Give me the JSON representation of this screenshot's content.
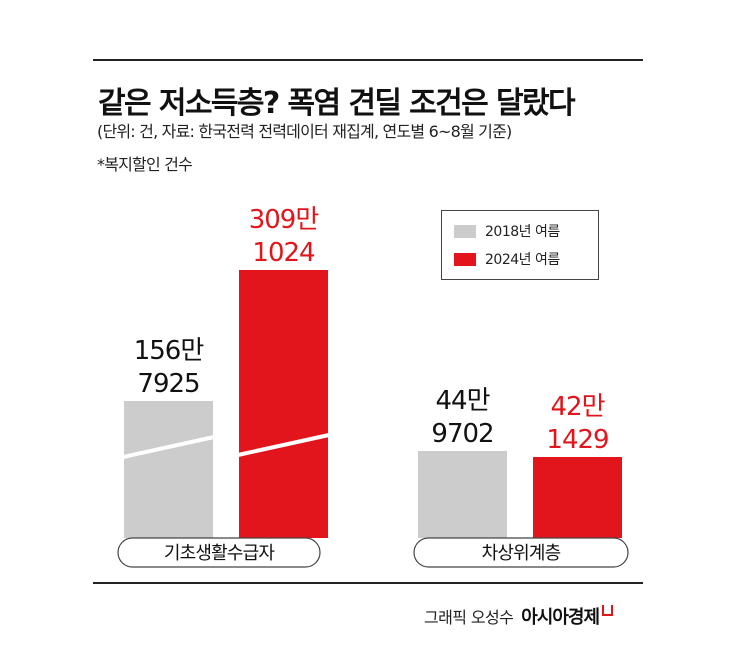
{
  "header": {
    "title": "같은 저소득층? 폭염 견딜 조건은 달랐다",
    "subtitle": "(단위: 건, 자료: 한국전력 전력데이터 재집계, 연도별 6~8월 기준)",
    "note": "*복지할인 건수"
  },
  "colors": {
    "series_2018": "#cccccc",
    "series_2024": "#e1151b",
    "value_2018": "#111111",
    "value_2024": "#e1151b"
  },
  "chart_data": {
    "type": "bar",
    "categories": [
      "기초생활수급자",
      "차상위계층"
    ],
    "series": [
      {
        "name": "2018년 여름",
        "values": [
          1567925,
          449702
        ],
        "labels": [
          [
            "156만",
            "7925"
          ],
          [
            "44만",
            "9702"
          ]
        ]
      },
      {
        "name": "2024년 여름",
        "values": [
          3091024,
          421429
        ],
        "labels": [
          [
            "309만",
            "1024"
          ],
          [
            "42만",
            "1429"
          ]
        ]
      }
    ],
    "axis_break": {
      "category": "기초생활수급자"
    },
    "legend_position": "top-right",
    "grid": false
  },
  "footer": {
    "credit": "그래픽 오성수",
    "brand": "아시아경제"
  }
}
